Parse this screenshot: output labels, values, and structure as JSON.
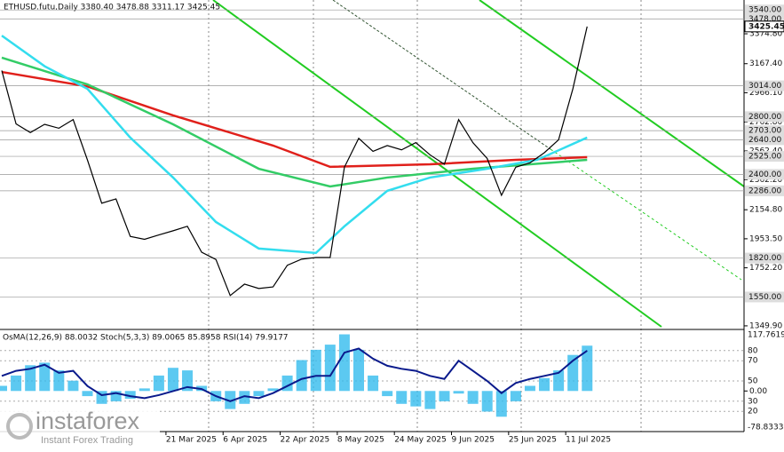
{
  "chart_data": {
    "type": "line",
    "title": "ETHUSD.futu,Daily  3380.40 3478.88 3311.17 3425.45",
    "x": [
      "2025-02-03",
      "2025-02-07",
      "2025-02-11",
      "2025-02-15",
      "2025-02-19",
      "2025-02-23",
      "2025-02-27",
      "2025-03-03",
      "2025-03-07",
      "2025-03-11",
      "2025-03-15",
      "2025-03-19",
      "2025-03-23",
      "2025-03-27",
      "2025-03-31",
      "2025-04-04",
      "2025-04-08",
      "2025-04-12",
      "2025-04-16",
      "2025-04-20",
      "2025-04-24",
      "2025-04-28",
      "2025-05-02",
      "2025-05-06",
      "2025-05-10",
      "2025-05-14",
      "2025-05-18",
      "2025-05-22",
      "2025-05-26",
      "2025-05-30",
      "2025-06-03",
      "2025-06-07",
      "2025-06-11",
      "2025-06-15",
      "2025-06-19",
      "2025-06-23",
      "2025-06-27",
      "2025-07-01",
      "2025-07-05",
      "2025-07-09",
      "2025-07-13",
      "2025-07-17"
    ],
    "series": [
      {
        "color": "#000000",
        "values": [
          3120,
          2750,
          2690,
          2747,
          2720,
          2780,
          2500,
          2200,
          2230,
          1970,
          1950,
          1980,
          2009,
          2040,
          1860,
          1810,
          1560,
          1639,
          1609,
          1620,
          1770,
          1812,
          1824,
          1824,
          2450,
          2650,
          2560,
          2600,
          2570,
          2620,
          2535,
          2470,
          2780,
          2620,
          2510,
          2255,
          2450,
          2480,
          2550,
          2640,
          2993,
          3425
        ]
      }
    ],
    "moving_averages": [
      {
        "color": "#e0201b",
        "x": [
          "2025-02-03",
          "2025-02-27",
          "2025-03-23",
          "2025-04-20",
          "2025-05-06",
          "2025-06-03",
          "2025-06-27",
          "2025-07-17"
        ],
        "values": [
          3110,
          3010,
          2809,
          2600,
          2452,
          2470,
          2501,
          2519
        ]
      },
      {
        "color": "#33cc66",
        "x": [
          "2025-02-03",
          "2025-02-27",
          "2025-03-23",
          "2025-04-16",
          "2025-05-06",
          "2025-05-22",
          "2025-06-15",
          "2025-07-17"
        ],
        "values": [
          3209,
          3024,
          2747,
          2439,
          2316,
          2378,
          2439,
          2501
        ]
      },
      {
        "color": "#33ddee",
        "x": [
          "2025-02-03",
          "2025-02-15",
          "2025-02-27",
          "2025-03-11",
          "2025-03-23",
          "2025-04-04",
          "2025-04-16",
          "2025-05-02",
          "2025-05-10",
          "2025-05-22",
          "2025-06-03",
          "2025-06-19",
          "2025-07-03",
          "2025-07-17"
        ],
        "values": [
          3362,
          3150,
          2993,
          2655,
          2378,
          2070,
          1886,
          1855,
          2040,
          2286,
          2378,
          2439,
          2501,
          2655
        ]
      }
    ],
    "ylim": [
      1331,
      3609
    ],
    "yticks": [
      {
        "value": 3374.8,
        "label": "3374.80"
      },
      {
        "value": 3167.4,
        "label": "3167.40"
      },
      {
        "value": 2966.1,
        "label": "2966.10"
      },
      {
        "value": 2762.8,
        "label": "2762.80"
      },
      {
        "value": 2562.4,
        "label": "2562.40"
      },
      {
        "value": 2362.2,
        "label": "2362.20"
      },
      {
        "value": 2154.8,
        "label": "2154.80"
      },
      {
        "value": 1953.5,
        "label": "1953.50"
      },
      {
        "value": 1752.2,
        "label": "1752.20"
      },
      {
        "value": 1349.9,
        "label": "1349.90"
      }
    ],
    "levels": [
      {
        "value": 3540,
        "label": "3540.00"
      },
      {
        "value": 3478,
        "label": "3478.00"
      },
      {
        "value": 3014,
        "label": "3014.00"
      },
      {
        "value": 2800,
        "label": "2800.00"
      },
      {
        "value": 2703,
        "label": "2703.00"
      },
      {
        "value": 2640,
        "label": "2640.00"
      },
      {
        "value": 2525,
        "label": "2525.00"
      },
      {
        "value": 2400,
        "label": "2400.00"
      },
      {
        "value": 2286,
        "label": "2286.00"
      },
      {
        "value": 1820,
        "label": "1820.00"
      },
      {
        "value": 1550,
        "label": "1550.00"
      }
    ],
    "last_price": 3425.45,
    "xticks": [
      {
        "value": "2025-03-21",
        "label": "21 Mar 2025"
      },
      {
        "value": "2025-04-06",
        "label": "6 Apr 2025"
      },
      {
        "value": "2025-04-22",
        "label": "22 Apr 2025"
      },
      {
        "value": "2025-05-08",
        "label": "8 May 2025"
      },
      {
        "value": "2025-05-24",
        "label": "24 May 2025"
      },
      {
        "value": "2025-06-09",
        "label": "9 Jun 2025"
      },
      {
        "value": "2025-06-25",
        "label": "25 Jun 2025"
      },
      {
        "value": "2025-07-11",
        "label": "11 Jul 2025"
      }
    ],
    "indicator": {
      "title": "OsMA(12,26,9) 88.0032 Stoch(5,3,3) 89.0065 85.8958 RSI(14) 79.9177",
      "ylim": [
        0,
        100
      ],
      "yticks": [
        80,
        70,
        50,
        30,
        20
      ],
      "y2lim": [
        -78.8333,
        117.7619
      ],
      "y2ticks": [
        {
          "value": 0,
          "label": "0.00"
        }
      ],
      "osma": {
        "color": "#33bbee",
        "values": [
          10,
          30,
          50,
          55,
          40,
          20,
          -10,
          -25,
          -20,
          -15,
          5,
          30,
          45,
          40,
          10,
          -20,
          -35,
          -25,
          -10,
          5,
          30,
          60,
          80,
          90,
          110,
          80,
          30,
          -10,
          -25,
          -30,
          -35,
          -20,
          -5,
          -25,
          -40,
          -50,
          -20,
          10,
          25,
          40,
          70,
          88.0032
        ]
      },
      "rsi": {
        "color": "#0a1a8c",
        "values": [
          55,
          60,
          62,
          66,
          58,
          60,
          45,
          36,
          38,
          35,
          33,
          36,
          40,
          44,
          42,
          35,
          30,
          35,
          33,
          38,
          45,
          52,
          55,
          55,
          78,
          82,
          72,
          65,
          62,
          60,
          55,
          52,
          70,
          60,
          50,
          38,
          48,
          52,
          55,
          58,
          70,
          79.9177
        ]
      }
    }
  },
  "watermark": {
    "brand": "instaforex",
    "tagline": "Instant Forex Trading"
  }
}
